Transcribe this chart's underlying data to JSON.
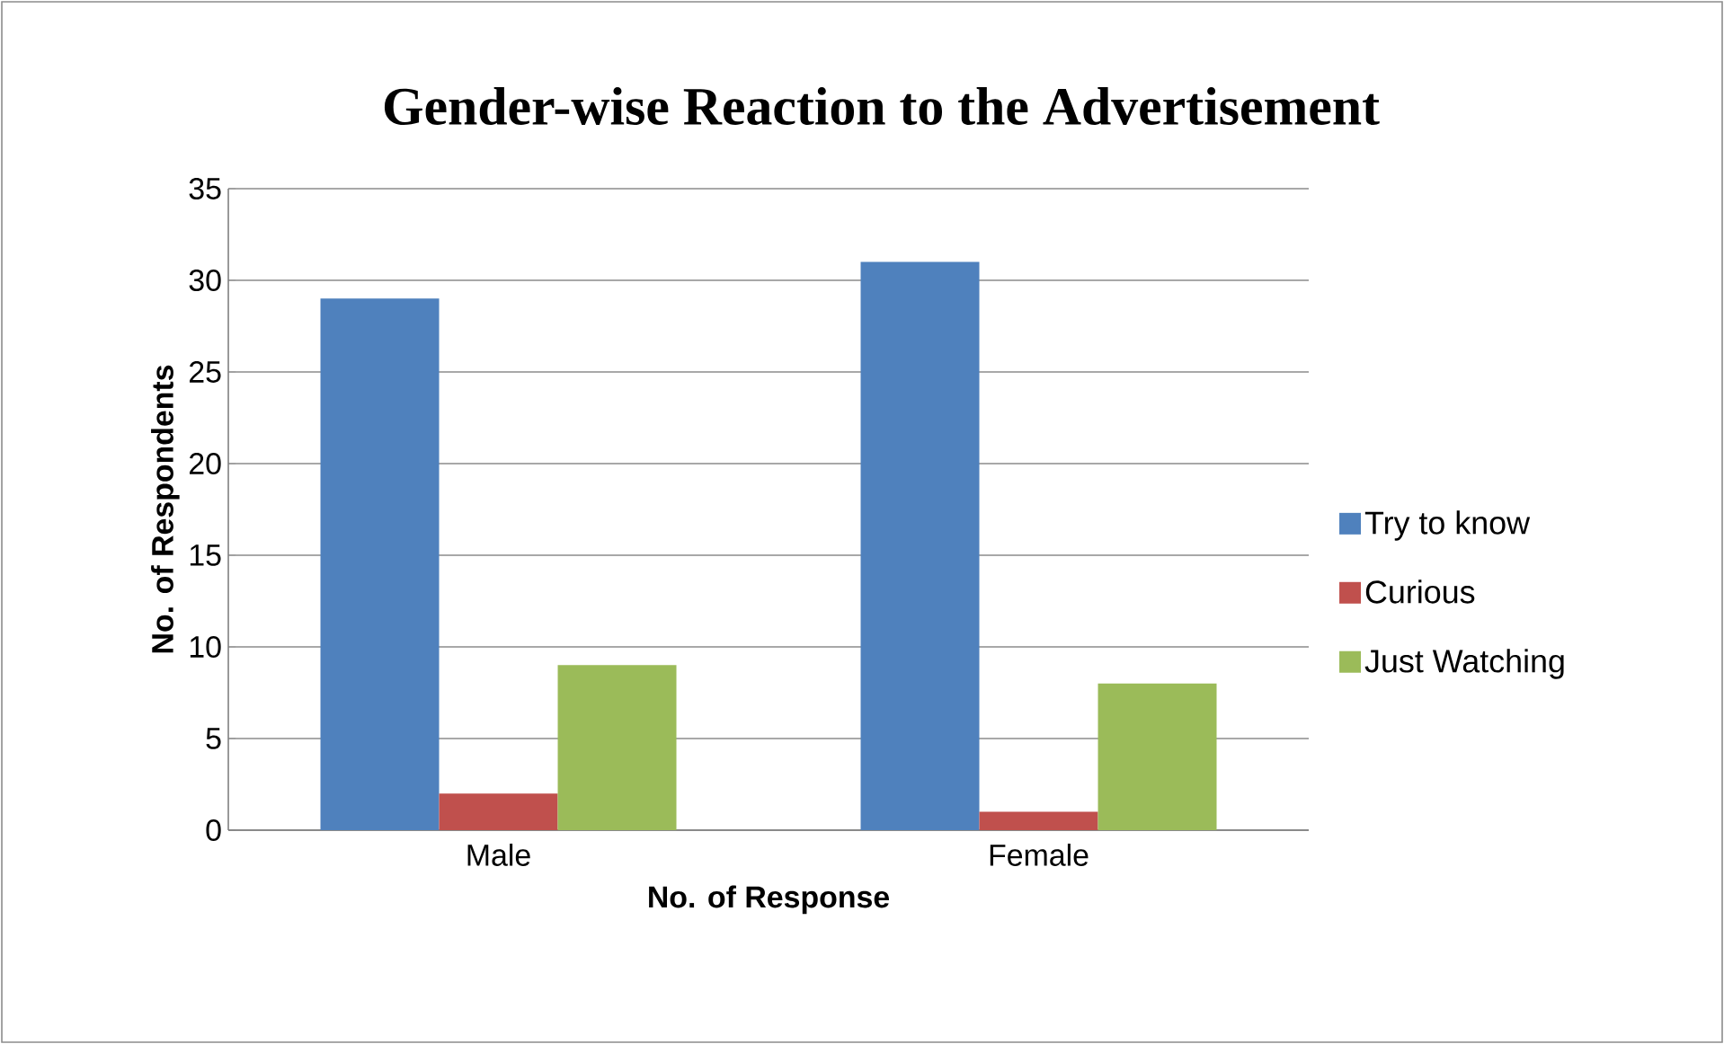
{
  "chart_data": {
    "type": "bar",
    "title": "Gender-wise Reaction to the Advertisement",
    "xlabel": "No. of Response",
    "ylabel": "No. of Respondents",
    "categories": [
      "Male",
      "Female"
    ],
    "series": [
      {
        "name": "Try to know",
        "color": "#4f81bd",
        "values": [
          29,
          31
        ]
      },
      {
        "name": "Curious",
        "color": "#c0504d",
        "values": [
          2,
          1
        ]
      },
      {
        "name": "Just Watching",
        "color": "#9bbb59",
        "values": [
          9,
          8
        ]
      }
    ],
    "ylim": [
      0,
      35
    ],
    "yticks": [
      0,
      5,
      10,
      15,
      20,
      25,
      30,
      35
    ],
    "grid": "y",
    "legend": "right"
  }
}
